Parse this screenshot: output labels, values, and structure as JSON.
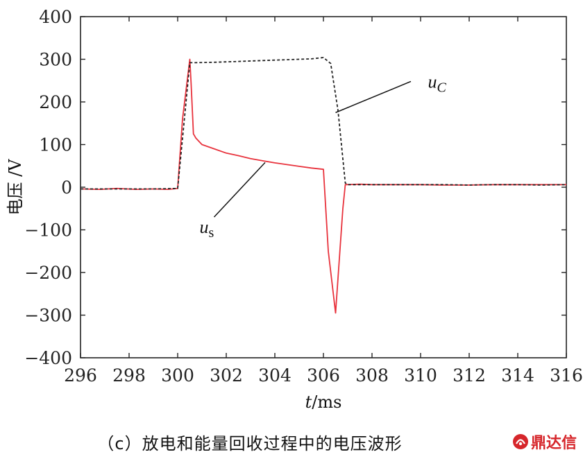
{
  "chart_data": {
    "type": "line",
    "xlabel_italic": "t",
    "xlabel_rest": "/ms",
    "ylabel": "电压 /V",
    "xlim": [
      296,
      316
    ],
    "ylim": [
      -400,
      400
    ],
    "xticks": [
      "296",
      "298",
      "300",
      "302",
      "304",
      "306",
      "308",
      "310",
      "312",
      "314",
      "316"
    ],
    "yticks": [
      "400",
      "300",
      "200",
      "100",
      "0",
      "−100",
      "−200",
      "−300",
      "−400"
    ],
    "grid": false,
    "series": [
      {
        "name": "us",
        "color": "#e8323c",
        "style": "solid",
        "x": [
          296.0,
          296.8,
          297.5,
          298.3,
          299.0,
          299.6,
          300.0,
          300.2,
          300.5,
          300.55,
          300.65,
          300.75,
          301.0,
          301.5,
          302.0,
          302.5,
          303.0,
          303.5,
          304.0,
          304.5,
          305.0,
          305.5,
          306.0,
          306.2,
          306.5,
          306.8,
          306.9,
          307.5,
          308.0,
          309.0,
          310.0,
          311.0,
          312.0,
          313.0,
          314.0,
          315.0,
          316.0
        ],
        "y": [
          -4,
          -5,
          -3,
          -5,
          -4,
          -5,
          -3,
          160,
          300,
          245,
          125,
          115,
          100,
          90,
          80,
          74,
          67,
          62,
          57,
          53,
          49,
          45,
          42,
          -150,
          -295,
          -50,
          6,
          7,
          6,
          6,
          6,
          5,
          5,
          6,
          6,
          6,
          6
        ]
      },
      {
        "name": "uC",
        "color": "#222222",
        "style": "dashed",
        "x": [
          296.0,
          297.0,
          298.0,
          299.0,
          300.0,
          300.5,
          300.7,
          301.5,
          302.5,
          303.5,
          304.5,
          305.5,
          306.0,
          306.3,
          306.6,
          306.9,
          307.0,
          308.0,
          309.0,
          310.0,
          311.0,
          312.0,
          313.0,
          314.0,
          315.0,
          316.0
        ],
        "y": [
          -4,
          -4,
          -4,
          -4,
          -3,
          292,
          292,
          293,
          295,
          297,
          299,
          301,
          304,
          290,
          180,
          10,
          6,
          6,
          6,
          6,
          6,
          5,
          6,
          6,
          5,
          6
        ]
      }
    ],
    "annotations": [
      {
        "base": "u",
        "sub": "C",
        "subItalic": true,
        "series": "uC"
      },
      {
        "base": "u",
        "sub": "s",
        "subItalic": false,
        "series": "us"
      }
    ]
  },
  "caption": "（c）放电和能量回收过程中的电压波形",
  "logo": {
    "text": "鼎达信",
    "color": "#d6262b"
  }
}
